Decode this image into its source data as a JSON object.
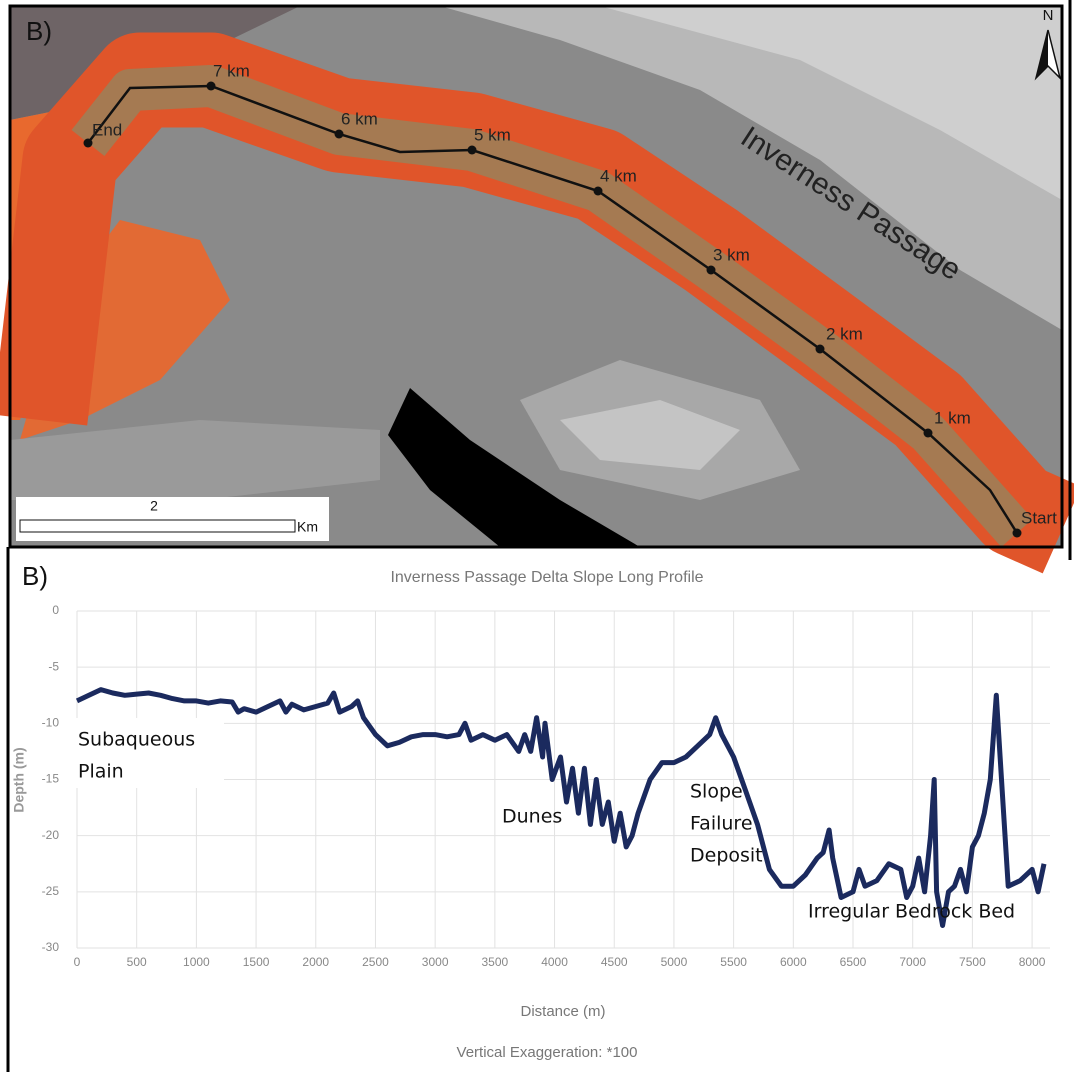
{
  "map": {
    "label": "B)",
    "north": "N",
    "title": "Inverness Passage",
    "markers": [
      "End",
      "7 km",
      "6 km",
      "5 km",
      "4 km",
      "3 km",
      "2 km",
      "1 km",
      "Start"
    ],
    "scale_value": "2",
    "scale_unit": "Km"
  },
  "chart_data": {
    "type": "line",
    "panel_label": "B)",
    "title": "Inverness Passage Delta Slope Long Profile",
    "x_label": "Distance (m)",
    "y_label": "Depth (m)",
    "caption": "Vertical Exaggeration: *100",
    "annotations": [
      [
        "Subaqueous",
        "Plain"
      ],
      [
        "Dunes"
      ],
      [
        "Slope",
        "Failure",
        "Deposit"
      ],
      [
        "Irregular Bedrock Bed"
      ]
    ],
    "xlim": [
      0,
      8150
    ],
    "xticks": [
      0,
      500,
      1000,
      1500,
      2000,
      2500,
      3000,
      3500,
      4000,
      4500,
      5000,
      5500,
      6000,
      6500,
      7000,
      7500,
      8000
    ],
    "ylim": [
      -30,
      0
    ],
    "yticks": [
      -30,
      -25,
      -20,
      -15,
      -10,
      -5,
      0
    ],
    "grid": true,
    "x": [
      0,
      100,
      200,
      300,
      400,
      500,
      600,
      700,
      800,
      900,
      1000,
      1100,
      1200,
      1300,
      1350,
      1400,
      1500,
      1600,
      1700,
      1750,
      1800,
      1900,
      2000,
      2100,
      2150,
      2200,
      2300,
      2350,
      2400,
      2500,
      2600,
      2700,
      2800,
      2900,
      3000,
      3100,
      3200,
      3250,
      3300,
      3400,
      3500,
      3600,
      3700,
      3750,
      3800,
      3850,
      3900,
      3920,
      3980,
      4050,
      4100,
      4150,
      4200,
      4250,
      4300,
      4350,
      4400,
      4450,
      4500,
      4550,
      4600,
      4650,
      4700,
      4800,
      4900,
      5000,
      5100,
      5200,
      5300,
      5350,
      5400,
      5500,
      5600,
      5700,
      5800,
      5900,
      6000,
      6100,
      6200,
      6250,
      6300,
      6330,
      6400,
      6500,
      6550,
      6600,
      6700,
      6800,
      6900,
      6950,
      7000,
      7050,
      7100,
      7150,
      7180,
      7200,
      7250,
      7300,
      7350,
      7400,
      7450,
      7500,
      7550,
      7600,
      7650,
      7700,
      7750,
      7800,
      7900,
      8000,
      8050,
      8100
    ],
    "series": [
      {
        "color": "#1b2a5e",
        "values": [
          -8,
          -7.5,
          -7,
          -7.3,
          -7.5,
          -7.4,
          -7.3,
          -7.5,
          -7.8,
          -8,
          -8,
          -8.2,
          -8,
          -8.1,
          -9,
          -8.7,
          -9,
          -8.5,
          -8,
          -9,
          -8.3,
          -8.8,
          -8.5,
          -8.2,
          -7.3,
          -9,
          -8.5,
          -8,
          -9.5,
          -11,
          -12,
          -11.7,
          -11.2,
          -11,
          -11,
          -11.2,
          -11,
          -10,
          -11.5,
          -11,
          -11.5,
          -11,
          -12.5,
          -11,
          -12.5,
          -9.5,
          -13,
          -10,
          -15,
          -13,
          -17,
          -14,
          -18,
          -14,
          -19,
          -15,
          -19,
          -17,
          -20.5,
          -18,
          -21,
          -20,
          -18,
          -15,
          -13.5,
          -13.5,
          -13,
          -12,
          -11,
          -9.5,
          -11,
          -13,
          -16,
          -19,
          -23,
          -24.5,
          -24.5,
          -23.5,
          -22,
          -21.5,
          -19.5,
          -22,
          -25.5,
          -25,
          -23,
          -24.5,
          -24,
          -22.5,
          -23,
          -25.5,
          -24.5,
          -22,
          -25,
          -20,
          -15,
          -25,
          -28,
          -25,
          -24.5,
          -23,
          -25,
          -21,
          -20,
          -18,
          -15,
          -7.5,
          -16,
          -24.5,
          -24,
          -23,
          -25,
          -22.5
        ]
      }
    ]
  }
}
